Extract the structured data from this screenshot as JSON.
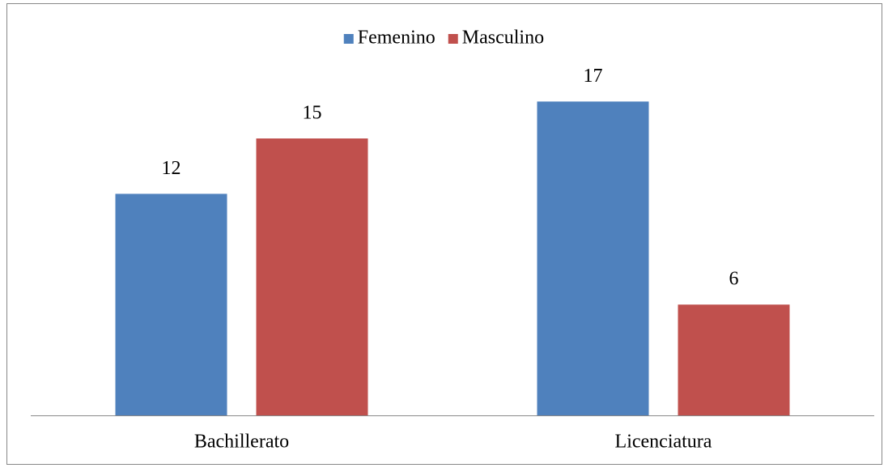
{
  "chart_data": {
    "type": "bar",
    "categories": [
      "Bachillerato",
      "Licenciatura"
    ],
    "series": [
      {
        "name": "Femenino",
        "color": "#4f81bd",
        "values": [
          12,
          17
        ]
      },
      {
        "name": "Masculino",
        "color": "#c0504d",
        "values": [
          15,
          6
        ]
      }
    ],
    "ylim": [
      0,
      20
    ],
    "legend": "top"
  }
}
